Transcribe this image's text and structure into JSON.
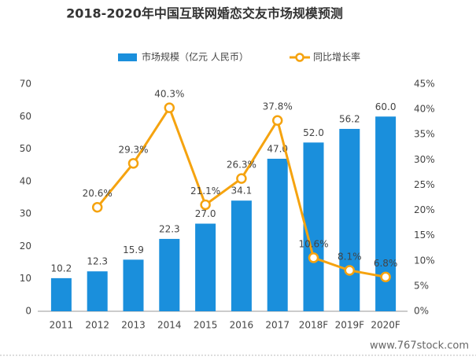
{
  "chart_data": {
    "type": "bar-line",
    "title": "2018-2020年中国互联网婚恋交友市场规模预测",
    "categories": [
      "2011",
      "2012",
      "2013",
      "2014",
      "2015",
      "2016",
      "2017",
      "2018F",
      "2019F",
      "2020F"
    ],
    "series": [
      {
        "name": "市场规模（亿元 人民币）",
        "type": "bar",
        "color": "#1a8fdc",
        "values": [
          10.2,
          12.3,
          15.9,
          22.3,
          27.0,
          34.1,
          47.0,
          52.0,
          56.2,
          60.0
        ],
        "value_labels": [
          "10.2",
          "12.3",
          "15.9",
          "22.3",
          "27.0",
          "34.1",
          "47.0",
          "52.0",
          "56.2",
          "60.0"
        ]
      },
      {
        "name": "同比增长率",
        "type": "line",
        "axis": "y2",
        "color": "#f5a30f",
        "values": [
          null,
          20.6,
          29.3,
          40.3,
          21.1,
          26.3,
          37.8,
          10.6,
          8.1,
          6.8
        ],
        "value_labels": [
          null,
          "20.6%",
          "29.3%",
          "40.3%",
          "21.1%",
          "26.3%",
          "37.8%",
          "10.6%",
          "8.1%",
          "6.8%"
        ]
      }
    ],
    "ylim": [
      0,
      70
    ],
    "yticks": [
      0,
      10,
      20,
      30,
      40,
      50,
      60,
      70
    ],
    "y2lim": [
      0,
      45
    ],
    "y2ticks": [
      {
        "value": 0,
        "label": "0%"
      },
      {
        "value": 5,
        "label": "5%"
      },
      {
        "value": 10,
        "label": "10%"
      },
      {
        "value": 15,
        "label": "15%"
      },
      {
        "value": 20,
        "label": "20%"
      },
      {
        "value": 25,
        "label": "25%"
      },
      {
        "value": 30,
        "label": "30%"
      },
      {
        "value": 35,
        "label": "35%"
      },
      {
        "value": 40,
        "label": "40%"
      },
      {
        "value": 45,
        "label": "45%"
      }
    ],
    "legend": "top",
    "watermark": "www.767stock.com"
  }
}
